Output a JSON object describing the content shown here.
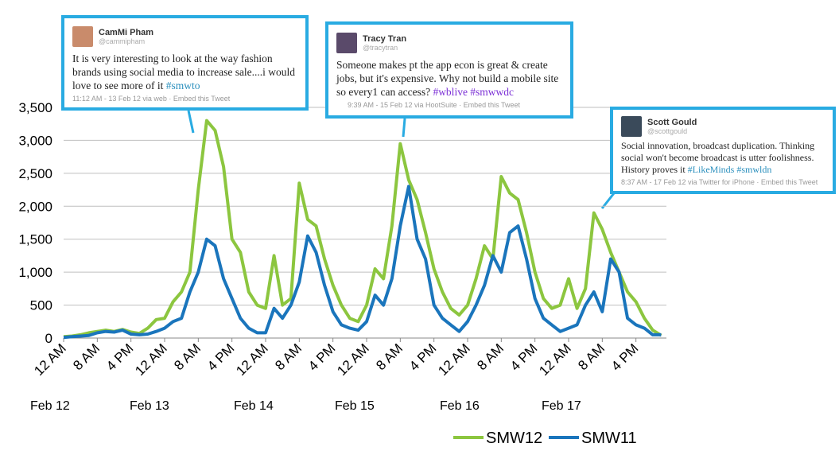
{
  "chart_data": {
    "type": "line",
    "x": [
      0,
      2,
      4,
      6,
      8,
      10,
      12,
      14,
      16,
      18,
      20,
      22,
      24,
      26,
      28,
      30,
      32,
      34,
      36,
      38,
      40,
      42,
      44,
      46,
      48,
      50,
      52,
      54,
      56,
      58,
      60,
      62,
      64,
      66,
      68,
      70,
      72,
      74,
      76,
      78,
      80,
      82,
      84,
      86,
      88,
      90,
      92,
      94,
      96,
      98,
      100,
      102,
      104,
      106,
      108,
      110,
      112,
      114,
      116,
      118,
      120,
      122,
      124,
      126,
      128,
      130,
      132,
      134,
      136,
      138,
      140,
      142
    ],
    "xlim": [
      0,
      144
    ],
    "xticks": [
      {
        "value": 0,
        "label": "12 AM"
      },
      {
        "value": 8,
        "label": "8 AM"
      },
      {
        "value": 16,
        "label": "4 PM"
      },
      {
        "value": 24,
        "label": "12 AM"
      },
      {
        "value": 32,
        "label": "8 AM"
      },
      {
        "value": 40,
        "label": "4 PM"
      },
      {
        "value": 48,
        "label": "12 AM"
      },
      {
        "value": 56,
        "label": "8 AM"
      },
      {
        "value": 64,
        "label": "4 PM"
      },
      {
        "value": 72,
        "label": "12 AM"
      },
      {
        "value": 80,
        "label": "8 AM"
      },
      {
        "value": 88,
        "label": "4 PM"
      },
      {
        "value": 96,
        "label": "12 AM"
      },
      {
        "value": 104,
        "label": "8 AM"
      },
      {
        "value": 112,
        "label": "4 PM"
      },
      {
        "value": 120,
        "label": "12 AM"
      },
      {
        "value": 128,
        "label": "8 AM"
      },
      {
        "value": 136,
        "label": "4 PM"
      }
    ],
    "day_labels": [
      "Feb 12",
      "Feb 13",
      "Feb 14",
      "Feb 15",
      "Feb 16",
      "Feb 17"
    ],
    "ylim": [
      0,
      3500
    ],
    "yticks": [
      0,
      {
        "value": 500,
        "label": "500"
      },
      {
        "value": 1000,
        "label": "1,000"
      },
      {
        "value": 1500,
        "label": "1,500"
      },
      {
        "value": 2000,
        "label": "2,000"
      },
      {
        "value": 2500,
        "label": "2,500"
      },
      {
        "value": 3000,
        "label": "3,000"
      },
      {
        "value": 3500,
        "label": "3,500"
      }
    ],
    "grid": true,
    "legend": "bottom",
    "series": [
      {
        "name": "SMW12",
        "color": "#8cc63f",
        "values": [
          20,
          30,
          50,
          80,
          100,
          120,
          100,
          130,
          90,
          70,
          150,
          280,
          300,
          550,
          700,
          1000,
          2250,
          3300,
          3150,
          2600,
          1500,
          1300,
          700,
          500,
          450,
          1250,
          500,
          600,
          2350,
          1800,
          1700,
          1200,
          800,
          500,
          300,
          250,
          500,
          1050,
          900,
          1700,
          2950,
          2400,
          2100,
          1600,
          1050,
          700,
          450,
          350,
          500,
          900,
          1400,
          1200,
          2450,
          2200,
          2100,
          1600,
          1000,
          600,
          450,
          500,
          900,
          450,
          750,
          1900,
          1650,
          1300,
          1000,
          700,
          550,
          300,
          120,
          40
        ]
      },
      {
        "name": "SMW11",
        "color": "#1a75bc",
        "values": [
          10,
          20,
          30,
          40,
          80,
          100,
          90,
          120,
          60,
          50,
          60,
          100,
          150,
          250,
          300,
          700,
          1000,
          1500,
          1400,
          900,
          600,
          300,
          150,
          80,
          80,
          450,
          300,
          500,
          850,
          1550,
          1300,
          800,
          400,
          200,
          150,
          120,
          250,
          650,
          500,
          900,
          1700,
          2300,
          1500,
          1200,
          500,
          300,
          200,
          100,
          250,
          500,
          800,
          1250,
          1000,
          1600,
          1700,
          1200,
          600,
          300,
          200,
          100,
          150,
          200,
          500,
          700,
          400,
          1200,
          1000,
          300,
          200,
          150,
          50,
          50
        ]
      }
    ]
  },
  "tweets": [
    {
      "name": "CamMi Pham",
      "handle": "@cammipham",
      "text": "It is very interesting to look at the way fashion brands using social media to increase sale....i would love to see more of it",
      "hashtags": "#smwto",
      "meta": "11:12 AM - 13 Feb 12 via web · Embed this Tweet"
    },
    {
      "name": "Tracy Tran",
      "handle": "@tracytran",
      "text": "Someone makes pt the app econ is great & create jobs, but it's expensive. Why not build a mobile site so every1 can access?",
      "hashtags": "#wblive #smwwdc",
      "meta": "9:39 AM - 15 Feb 12 via HootSuite · Embed this Tweet"
    },
    {
      "name": "Scott Gould",
      "handle": "@scottgould",
      "text": "Social innovation, broadcast duplication. Thinking social won't become broadcast is utter foolishness. History proves it",
      "hashtags": "#LikeMinds #smwldn",
      "meta": "8:37 AM - 17 Feb 12 via Twitter for iPhone · Embed this Tweet"
    }
  ]
}
